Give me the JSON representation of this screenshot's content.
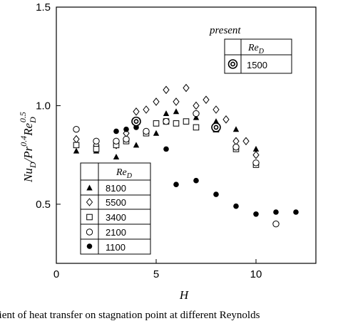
{
  "chart_data": {
    "type": "scatter",
    "xlabel": "H",
    "ylabel_parts": {
      "nu": "Nu",
      "nu_sub": "D",
      "slash": "/Pr",
      "pr_exp": "0.4",
      "re": "Re",
      "re_sub": "D",
      "re_exp": "0.5"
    },
    "xlim": [
      0,
      13
    ],
    "ylim": [
      0.2,
      1.5
    ],
    "xticks": [
      0,
      5,
      10
    ],
    "yticks": [
      0.5,
      1.0,
      1.5
    ],
    "xtick_labels": [
      "0",
      "5",
      "10"
    ],
    "ytick_labels": [
      "0.5",
      "1.0",
      "1.5"
    ],
    "grid": false,
    "legend_main": {
      "header": "Re",
      "header_sub": "D",
      "placement": "bottom-left"
    },
    "legend_present": {
      "title": "present",
      "header": "Re",
      "header_sub": "D",
      "placement": "top-right"
    },
    "series": [
      {
        "name": "8100",
        "marker": "filled-triangle",
        "x": [
          1,
          2,
          3,
          4,
          5,
          5.5,
          6,
          7,
          8,
          9,
          10
        ],
        "y": [
          0.77,
          0.77,
          0.74,
          0.8,
          0.86,
          0.96,
          0.97,
          0.94,
          0.92,
          0.88,
          0.78
        ]
      },
      {
        "name": "5500",
        "marker": "open-diamond",
        "x": [
          1,
          2,
          3,
          3.5,
          4,
          4.5,
          5,
          5.5,
          6,
          6.5,
          7,
          7.5,
          8,
          8.5,
          9,
          9.5,
          10
        ],
        "y": [
          0.83,
          0.8,
          0.8,
          0.86,
          0.97,
          0.98,
          1.02,
          1.08,
          1.02,
          1.09,
          1.0,
          1.03,
          0.98,
          0.93,
          0.82,
          0.82,
          0.75
        ]
      },
      {
        "name": "3400",
        "marker": "open-square",
        "x": [
          1,
          2,
          3,
          3.5,
          4.5,
          5,
          5.5,
          6,
          6.5,
          7,
          8,
          9,
          10
        ],
        "y": [
          0.8,
          0.78,
          0.8,
          0.82,
          0.86,
          0.91,
          0.92,
          0.91,
          0.92,
          0.89,
          0.88,
          0.78,
          0.7
        ]
      },
      {
        "name": "2100",
        "marker": "open-circle",
        "x": [
          1,
          2,
          3,
          3.5,
          4.5,
          5.5,
          7,
          8,
          9,
          10,
          11
        ],
        "y": [
          0.88,
          0.82,
          0.82,
          0.83,
          0.87,
          0.92,
          0.96,
          0.89,
          0.79,
          0.71,
          0.4
        ]
      },
      {
        "name": "1100",
        "marker": "filled-circle",
        "x": [
          3,
          3.5,
          4,
          5.5,
          6,
          7,
          8,
          9,
          10,
          11,
          12
        ],
        "y": [
          0.87,
          0.88,
          0.89,
          0.78,
          0.6,
          0.62,
          0.55,
          0.49,
          0.45,
          0.46,
          0.46
        ]
      },
      {
        "name": "1500",
        "marker": "double-circle",
        "present": true,
        "x": [
          4,
          8
        ],
        "y": [
          0.92,
          0.89
        ]
      }
    ]
  },
  "caption": "fficient of heat transfer on stagnation point at different Reynolds"
}
